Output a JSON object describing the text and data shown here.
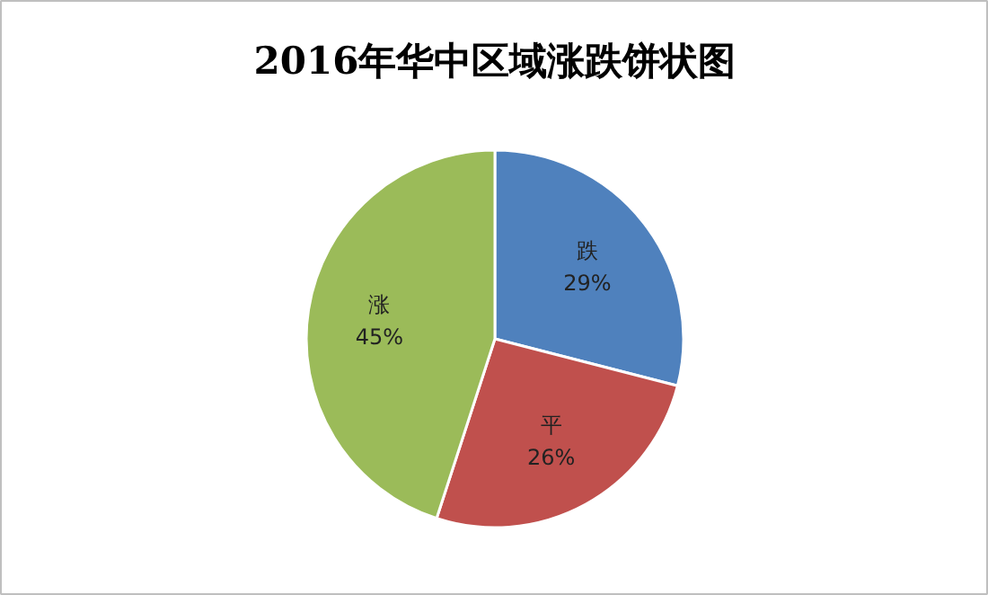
{
  "chart_data": {
    "type": "pie",
    "title": "2016年华中区域涨跌饼状图",
    "categories": [
      "跌",
      "平",
      "涨"
    ],
    "values": [
      29,
      26,
      45
    ],
    "colors": [
      "#4f81bd",
      "#c0504d",
      "#9bbb59"
    ],
    "value_labels": [
      "29%",
      "26%",
      "45%"
    ]
  }
}
